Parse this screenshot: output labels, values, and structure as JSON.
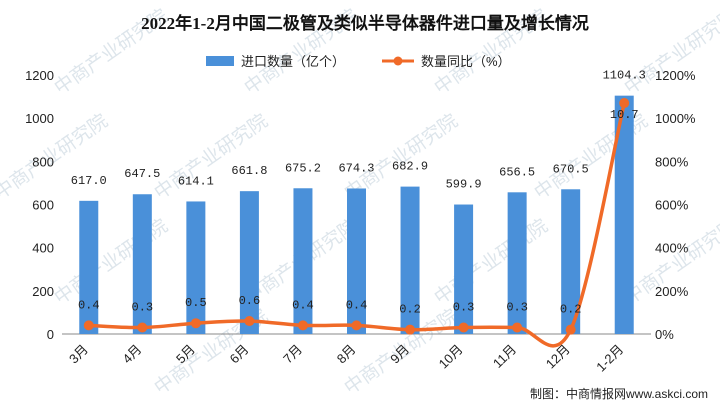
{
  "chart_data": {
    "type": "bar",
    "title": "2022年1-2月中国二极管及类似半导体器件进口量及增长情况",
    "categories": [
      "3月",
      "4月",
      "5月",
      "6月",
      "7月",
      "8月",
      "9月",
      "10月",
      "11月",
      "12月",
      "1-2月"
    ],
    "series": [
      {
        "name": "进口数量（亿个）",
        "type": "bar",
        "axis": "left",
        "color": "#4a90d9",
        "values": [
          617.0,
          647.5,
          614.1,
          661.8,
          675.2,
          674.3,
          682.9,
          599.9,
          656.5,
          670.5,
          1104.3
        ],
        "labels": [
          "617.0",
          "647.5",
          "614.1",
          "661.8",
          "675.2",
          "674.3",
          "682.9",
          "599.9",
          "656.5",
          "670.5",
          "1104.3"
        ]
      },
      {
        "name": "数量同比（%）",
        "type": "line",
        "axis": "right",
        "color": "#f06a28",
        "values": [
          0.4,
          0.3,
          0.5,
          0.6,
          0.4,
          0.4,
          0.2,
          0.3,
          0.3,
          0.2,
          10.7
        ],
        "labels": [
          "0.4",
          "0.3",
          "0.5",
          "0.6",
          "0.4",
          "0.4",
          "0.2",
          "0.3",
          "0.3",
          "0.2",
          "10.7"
        ]
      }
    ],
    "left_axis": {
      "ylim": [
        0,
        1200
      ],
      "ticks": [
        "0",
        "200",
        "400",
        "600",
        "800",
        "1000",
        "1200"
      ]
    },
    "right_axis": {
      "ylim": [
        0,
        12
      ],
      "ticks": [
        "0%",
        "200%",
        "400%",
        "600%",
        "800%",
        "1000%",
        "1200%"
      ]
    },
    "grid": false,
    "legend_position": "top-center"
  },
  "credit": "制图：中商情报网www.askci.com",
  "watermark": "中商产业研究院"
}
